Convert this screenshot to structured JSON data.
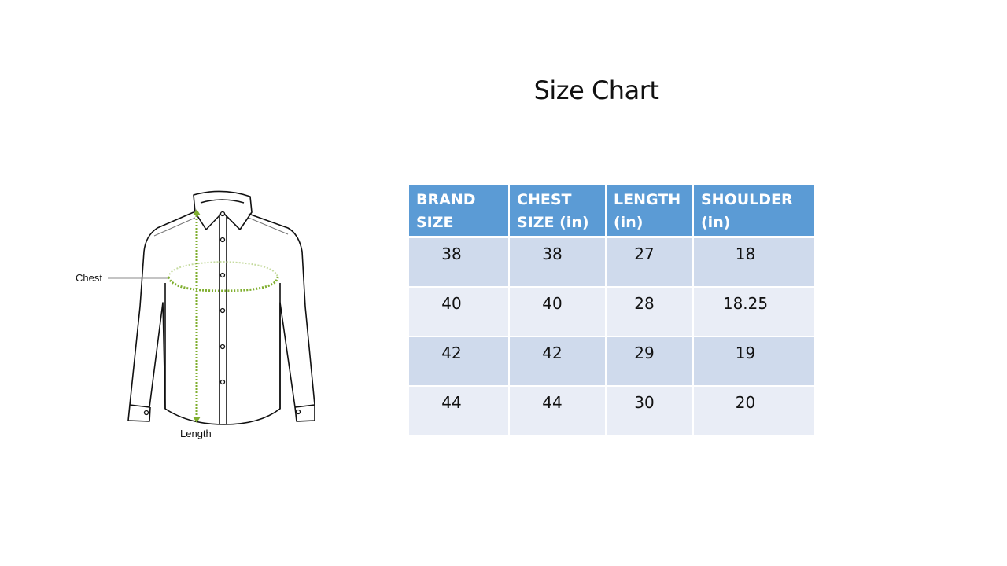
{
  "title": "Size Chart",
  "diagram": {
    "chest_label": "Chest",
    "length_label": "Length",
    "accent_color": "#7fae2e"
  },
  "table": {
    "headers": [
      "BRAND SIZE",
      "CHEST SIZE (in)",
      "LENGTH (in)",
      "SHOULDER (in)"
    ],
    "rows": [
      [
        "38",
        "38",
        "27",
        "18"
      ],
      [
        "40",
        "40",
        "28",
        "18.25"
      ],
      [
        "42",
        "42",
        "29",
        "19"
      ],
      [
        "44",
        "44",
        "30",
        "20"
      ]
    ],
    "header_color": "#5b9bd5",
    "row_colors": [
      "#cfdaec",
      "#e9edf6"
    ]
  }
}
